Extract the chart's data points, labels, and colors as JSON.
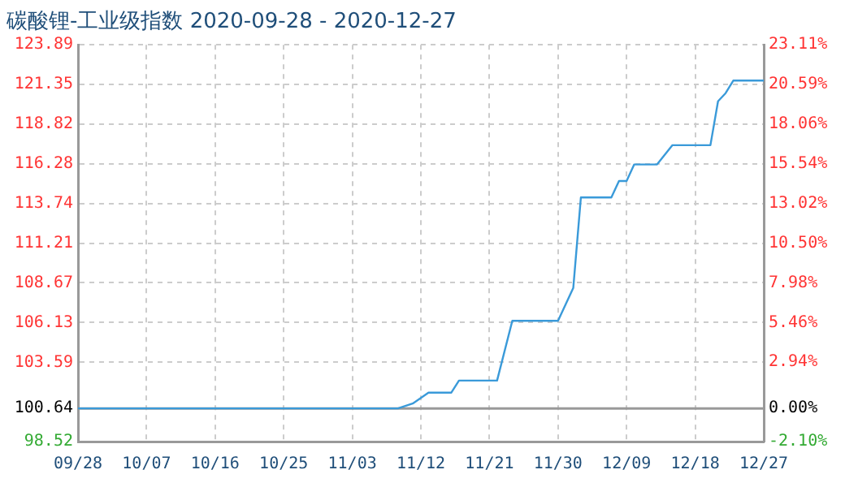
{
  "chart_data": {
    "type": "line",
    "title": "碳酸锂-工业级指数 2020-09-28 - 2020-12-27",
    "x": [
      "2020-09-28",
      "2020-11-09",
      "2020-11-11",
      "2020-11-13",
      "2020-11-16",
      "2020-11-17",
      "2020-11-22",
      "2020-11-24",
      "2020-11-30",
      "2020-12-02",
      "2020-12-03",
      "2020-12-07",
      "2020-12-08",
      "2020-12-09",
      "2020-12-10",
      "2020-12-13",
      "2020-12-15",
      "2020-12-20",
      "2020-12-21",
      "2020-12-22",
      "2020-12-23",
      "2020-12-27"
    ],
    "series": [
      {
        "color": "#3a9ad9",
        "values": [
          100.64,
          100.64,
          100.97,
          101.65,
          101.65,
          102.42,
          102.42,
          106.24,
          106.24,
          108.34,
          114.13,
          114.13,
          115.18,
          115.18,
          116.24,
          116.24,
          117.47,
          117.47,
          120.28,
          120.8,
          121.6,
          121.6
        ]
      }
    ],
    "xlim": [
      "2020-09-28",
      "2020-12-27"
    ],
    "xticks": [
      {
        "value": "2020-09-28",
        "label": "09/28"
      },
      {
        "value": "2020-10-07",
        "label": "10/07"
      },
      {
        "value": "2020-10-16",
        "label": "10/16"
      },
      {
        "value": "2020-10-25",
        "label": "10/25"
      },
      {
        "value": "2020-11-03",
        "label": "11/03"
      },
      {
        "value": "2020-11-12",
        "label": "11/12"
      },
      {
        "value": "2020-11-21",
        "label": "11/21"
      },
      {
        "value": "2020-11-30",
        "label": "11/30"
      },
      {
        "value": "2020-12-09",
        "label": "12/09"
      },
      {
        "value": "2020-12-18",
        "label": "12/18"
      },
      {
        "value": "2020-12-27",
        "label": "12/27"
      }
    ],
    "ylim": [
      98.52,
      123.89
    ],
    "yticks": [
      98.52,
      100.64,
      103.59,
      106.13,
      108.67,
      111.21,
      113.74,
      116.28,
      118.82,
      121.35,
      123.89
    ],
    "y2lim": [
      -2.1,
      23.11
    ],
    "y2ticks": [
      {
        "value": -2.1,
        "label": "-2.10%"
      },
      {
        "value": 0,
        "label": "0.00%"
      },
      {
        "value": 2.94,
        "label": "2.94%"
      },
      {
        "value": 5.46,
        "label": "5.46%"
      },
      {
        "value": 7.98,
        "label": "7.98%"
      },
      {
        "value": 10.5,
        "label": "10.50%"
      },
      {
        "value": 13.02,
        "label": "13.02%"
      },
      {
        "value": 15.54,
        "label": "15.54%"
      },
      {
        "value": 18.06,
        "label": "18.06%"
      },
      {
        "value": 20.59,
        "label": "20.59%"
      },
      {
        "value": 23.11,
        "label": "23.11%"
      }
    ],
    "ref_lines": [
      {
        "axis": "y",
        "value": 100.64,
        "color": "#999999"
      }
    ],
    "grid": true,
    "legend": false,
    "marker": "none",
    "line_style": "solid"
  }
}
